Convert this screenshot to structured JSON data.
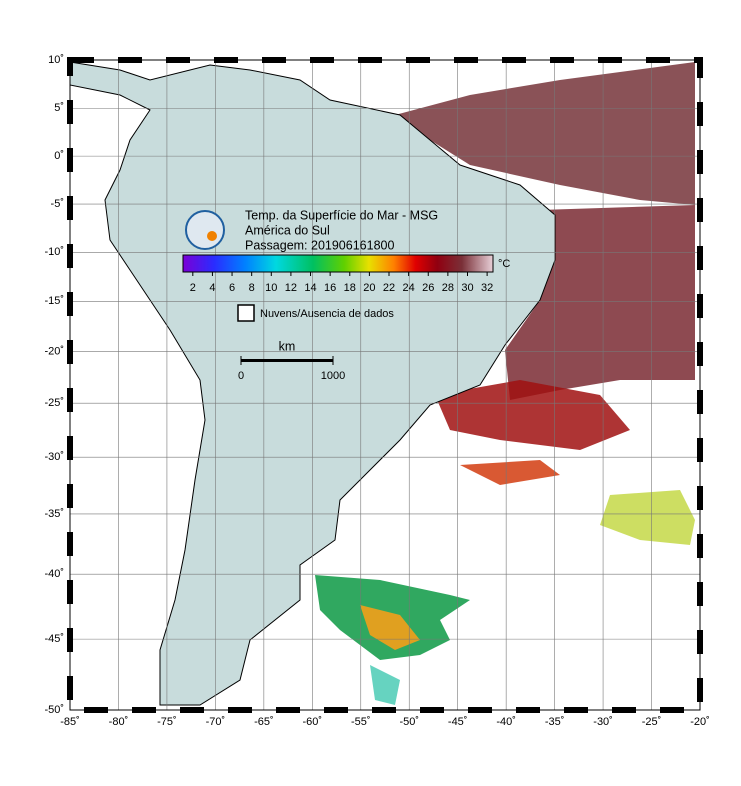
{
  "map": {
    "title": "Temp. da Superfície do Mar - MSG",
    "subtitle": "América do Sul",
    "pass": "Passagem: 201906161800",
    "xlim": [
      -85,
      -20
    ],
    "ylim": [
      -50,
      10
    ],
    "xticks": [
      {
        "value": -85,
        "label": "-85˚"
      },
      {
        "value": -80,
        "label": "-80˚"
      },
      {
        "value": -75,
        "label": "-75˚"
      },
      {
        "value": -70,
        "label": "-70˚"
      },
      {
        "value": -65,
        "label": "-65˚"
      },
      {
        "value": -60,
        "label": "-60˚"
      },
      {
        "value": -55,
        "label": "-55˚"
      },
      {
        "value": -50,
        "label": "-50˚"
      },
      {
        "value": -45,
        "label": "-45˚"
      },
      {
        "value": -40,
        "label": "-40˚"
      },
      {
        "value": -35,
        "label": "-35˚"
      },
      {
        "value": -30,
        "label": "-30˚"
      },
      {
        "value": -25,
        "label": "-25˚"
      },
      {
        "value": -20,
        "label": "-20˚"
      }
    ],
    "yticks": [
      {
        "value": 10,
        "label": "10˚"
      },
      {
        "value": 5,
        "label": "5˚"
      },
      {
        "value": 0,
        "label": "0˚"
      },
      {
        "value": -5,
        "label": "-5˚"
      },
      {
        "value": -10,
        "label": "-10˚"
      },
      {
        "value": -15,
        "label": "-15˚"
      },
      {
        "value": -20,
        "label": "-20˚"
      },
      {
        "value": -25,
        "label": "-25˚"
      },
      {
        "value": -30,
        "label": "-30˚"
      },
      {
        "value": -35,
        "label": "-35˚"
      },
      {
        "value": -40,
        "label": "-40˚"
      },
      {
        "value": -45,
        "label": "-45˚"
      },
      {
        "value": -50,
        "label": "-50˚"
      }
    ],
    "grid": true,
    "colorbar": {
      "unit": "°C",
      "clim": [
        1,
        32.6
      ],
      "ticks": [
        2,
        4,
        6,
        8,
        10,
        12,
        14,
        16,
        18,
        20,
        22,
        24,
        26,
        28,
        30,
        32
      ]
    },
    "legend": "Nuvens/Ausencia de dados",
    "scale": {
      "unit": "km",
      "ticks": [
        0,
        1000
      ]
    }
  }
}
